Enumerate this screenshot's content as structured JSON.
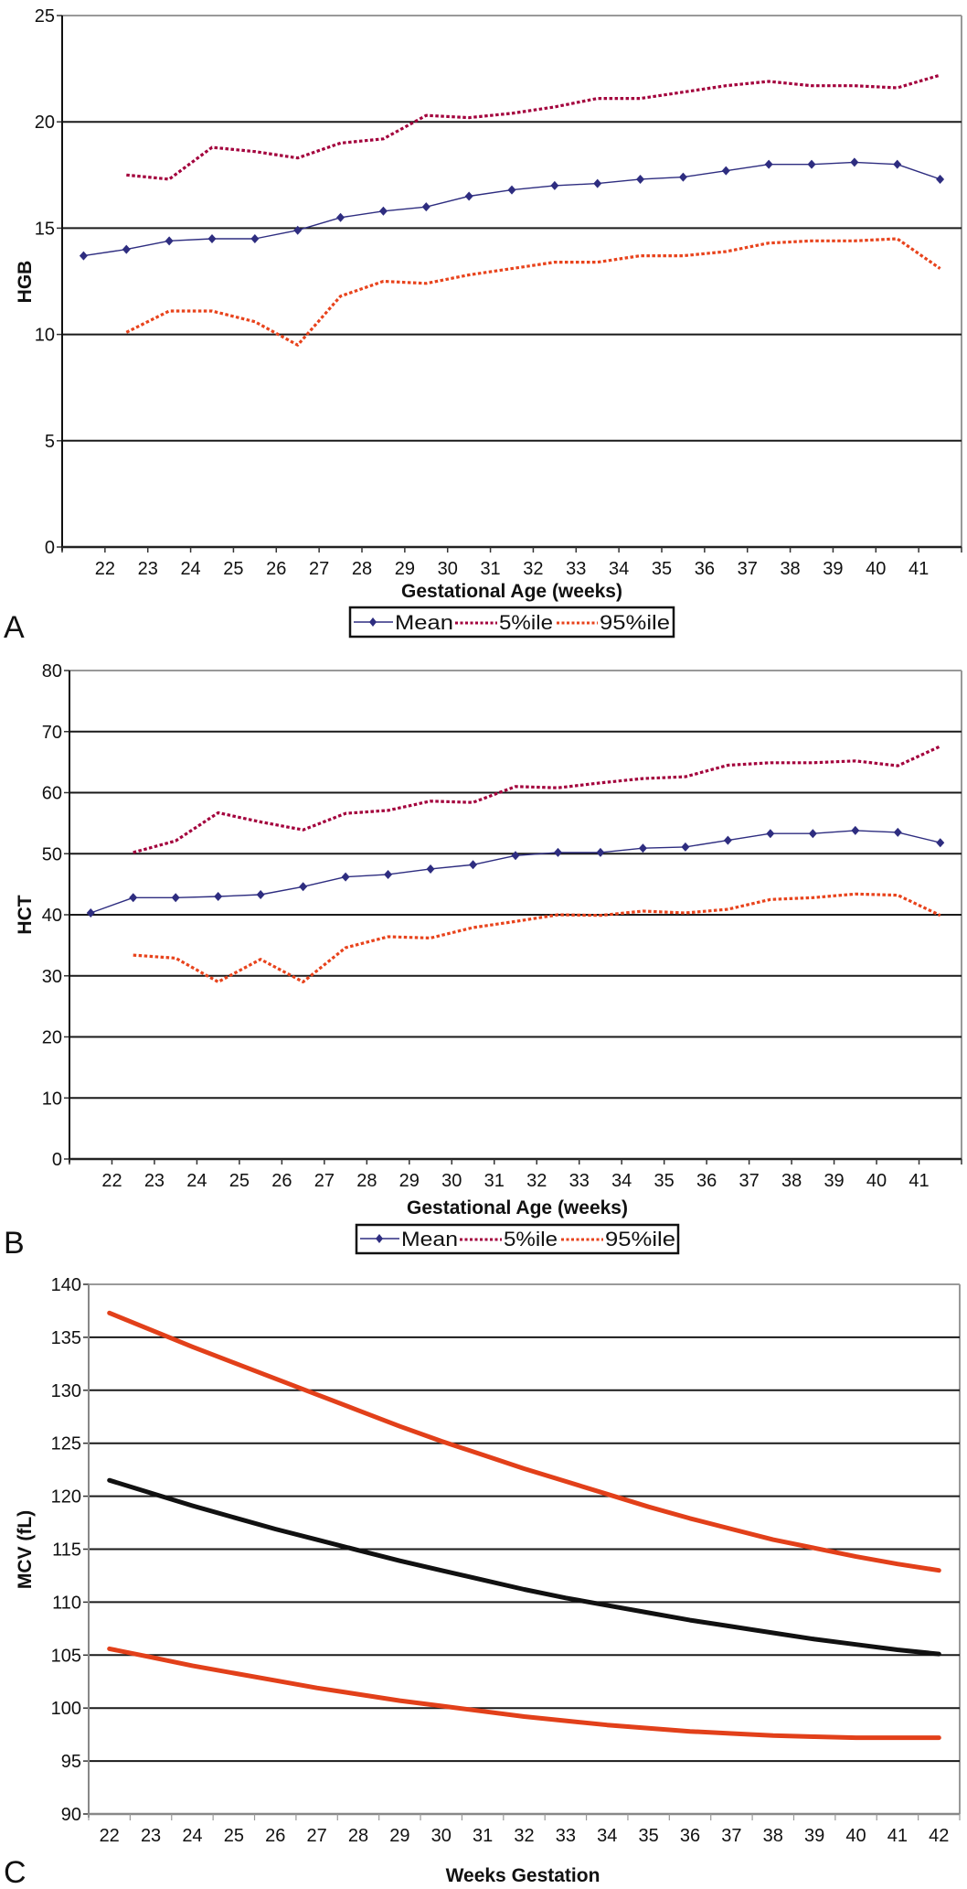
{
  "figure": {
    "panel_labels": [
      "A",
      "B",
      "C"
    ]
  },
  "chart_data": [
    {
      "type": "line",
      "xlabel": "Gestational Age (weeks)",
      "ylabel": "HGB",
      "xlim": [
        21,
        42
      ],
      "ylim": [
        0,
        25
      ],
      "y_ticks": [
        0,
        5,
        10,
        15,
        20,
        25
      ],
      "x_tick_labels": [
        "22",
        "23",
        "24",
        "25",
        "26",
        "27",
        "28",
        "29",
        "30",
        "31",
        "32",
        "33",
        "34",
        "35",
        "36",
        "37",
        "38",
        "39",
        "40",
        "41"
      ],
      "grid": "horizontal",
      "legend": "bottom",
      "series": [
        {
          "name": "Mean",
          "style": "solid-diamond",
          "color": "#2e2d80",
          "x": [
            21.5,
            22.5,
            23.5,
            24.5,
            25.5,
            26.5,
            27.5,
            28.5,
            29.5,
            30.5,
            31.5,
            32.5,
            33.5,
            34.5,
            35.5,
            36.5,
            37.5,
            38.5,
            39.5,
            40.5,
            41.5
          ],
          "y": [
            13.7,
            14.0,
            14.4,
            14.5,
            14.5,
            14.9,
            15.5,
            15.8,
            16.0,
            16.5,
            16.8,
            17.0,
            17.1,
            17.3,
            17.4,
            17.7,
            18.0,
            18.0,
            18.1,
            18.0,
            17.3
          ]
        },
        {
          "name": "5%ile",
          "style": "dotted",
          "color": "#a3003c",
          "x": [
            22.5,
            23.5,
            24.5,
            25.5,
            26.5,
            27.5,
            28.5,
            29.5,
            30.5,
            31.5,
            32.5,
            33.5,
            34.5,
            35.5,
            36.5,
            37.5,
            38.5,
            39.5,
            40.5,
            41.5
          ],
          "y": [
            17.5,
            17.3,
            18.8,
            18.6,
            18.3,
            19.0,
            19.2,
            20.3,
            20.2,
            20.4,
            20.7,
            21.1,
            21.1,
            21.4,
            21.7,
            21.9,
            21.7,
            21.7,
            21.6,
            22.2
          ]
        },
        {
          "name": "95%ile",
          "style": "dotted",
          "color": "#e8431c",
          "x": [
            22.5,
            23.5,
            24.5,
            25.5,
            26.5,
            27.5,
            28.5,
            29.5,
            30.5,
            31.5,
            32.5,
            33.5,
            34.5,
            35.5,
            36.5,
            37.5,
            38.5,
            39.5,
            40.5,
            41.5
          ],
          "y": [
            10.1,
            11.1,
            11.1,
            10.6,
            9.5,
            11.8,
            12.5,
            12.4,
            12.8,
            13.1,
            13.4,
            13.4,
            13.7,
            13.7,
            13.9,
            14.3,
            14.4,
            14.4,
            14.5,
            13.1
          ]
        }
      ]
    },
    {
      "type": "line",
      "xlabel": "Gestational Age (weeks)",
      "ylabel": "HCT",
      "xlim": [
        21,
        42
      ],
      "ylim": [
        0,
        80
      ],
      "y_ticks": [
        0,
        10,
        20,
        30,
        40,
        50,
        60,
        70,
        80
      ],
      "x_tick_labels": [
        "22",
        "23",
        "24",
        "25",
        "26",
        "27",
        "28",
        "29",
        "30",
        "31",
        "32",
        "33",
        "34",
        "35",
        "36",
        "37",
        "38",
        "39",
        "40",
        "41"
      ],
      "grid": "horizontal",
      "legend": "bottom",
      "series": [
        {
          "name": "Mean",
          "style": "solid-diamond",
          "color": "#2e2d80",
          "x": [
            21.5,
            22.5,
            23.5,
            24.5,
            25.5,
            26.5,
            27.5,
            28.5,
            29.5,
            30.5,
            31.5,
            32.5,
            33.5,
            34.5,
            35.5,
            36.5,
            37.5,
            38.5,
            39.5,
            40.5,
            41.5
          ],
          "y": [
            40.3,
            42.8,
            42.8,
            43.0,
            43.3,
            44.6,
            46.2,
            46.6,
            47.5,
            48.2,
            49.7,
            50.2,
            50.2,
            50.9,
            51.1,
            52.2,
            53.3,
            53.3,
            53.8,
            53.5,
            51.8
          ]
        },
        {
          "name": "5%ile",
          "style": "dotted",
          "color": "#a3003c",
          "x": [
            22.5,
            23.5,
            24.5,
            25.5,
            26.5,
            27.5,
            28.5,
            29.5,
            30.5,
            31.5,
            32.5,
            33.5,
            34.5,
            35.5,
            36.5,
            37.5,
            38.5,
            39.5,
            40.5,
            41.5
          ],
          "y": [
            50.2,
            52.1,
            56.7,
            55.2,
            53.9,
            56.6,
            57.1,
            58.6,
            58.4,
            61.0,
            60.8,
            61.6,
            62.3,
            62.6,
            64.5,
            64.9,
            64.9,
            65.2,
            64.4,
            67.6
          ]
        },
        {
          "name": "95%ile",
          "style": "dotted",
          "color": "#e8431c",
          "x": [
            22.5,
            23.5,
            24.5,
            25.5,
            26.5,
            27.5,
            28.5,
            29.5,
            30.5,
            31.5,
            32.5,
            33.5,
            34.5,
            35.5,
            36.5,
            37.5,
            38.5,
            39.5,
            40.5,
            41.5
          ],
          "y": [
            33.4,
            32.9,
            29.0,
            32.7,
            29.0,
            34.6,
            36.4,
            36.2,
            37.9,
            38.9,
            40.0,
            39.9,
            40.6,
            40.3,
            40.9,
            42.5,
            42.8,
            43.4,
            43.2,
            39.9
          ]
        }
      ]
    },
    {
      "type": "line",
      "xlabel": "Weeks Gestation",
      "ylabel": "MCV (fL)",
      "xlim": [
        21.5,
        42.5
      ],
      "ylim": [
        90,
        140
      ],
      "y_ticks": [
        90,
        95,
        100,
        105,
        110,
        115,
        120,
        125,
        130,
        135,
        140
      ],
      "x_tick_labels": [
        "22",
        "23",
        "24",
        "25",
        "26",
        "27",
        "28",
        "29",
        "30",
        "31",
        "32",
        "33",
        "34",
        "35",
        "36",
        "37",
        "38",
        "39",
        "40",
        "41",
        "42"
      ],
      "grid": "horizontal",
      "series": [
        {
          "style": "solid-thick",
          "color": "#e2401a",
          "x": [
            22,
            23,
            24,
            25,
            26,
            27,
            28,
            29,
            30,
            31,
            32,
            33,
            34,
            35,
            36,
            37,
            38,
            39,
            40,
            41,
            42
          ],
          "y": [
            137.3,
            135.7,
            134.1,
            132.6,
            131.1,
            129.6,
            128.1,
            126.6,
            125.2,
            123.9,
            122.6,
            121.4,
            120.2,
            119.0,
            117.9,
            116.9,
            115.9,
            115.1,
            114.3,
            113.6,
            113.0
          ]
        },
        {
          "style": "solid-thick",
          "color": "#111111",
          "x": [
            22,
            23,
            24,
            25,
            26,
            27,
            28,
            29,
            30,
            31,
            32,
            33,
            34,
            35,
            36,
            37,
            38,
            39,
            40,
            41,
            42
          ],
          "y": [
            121.5,
            120.3,
            119.1,
            118.0,
            116.9,
            115.9,
            114.9,
            113.9,
            113.0,
            112.1,
            111.2,
            110.4,
            109.7,
            109.0,
            108.3,
            107.7,
            107.1,
            106.5,
            106.0,
            105.5,
            105.1
          ]
        },
        {
          "style": "solid-thick",
          "color": "#e2401a",
          "x": [
            22,
            23,
            24,
            25,
            26,
            27,
            28,
            29,
            30,
            31,
            32,
            33,
            34,
            35,
            36,
            37,
            38,
            39,
            40,
            41,
            42
          ],
          "y": [
            105.6,
            104.8,
            104.0,
            103.3,
            102.6,
            101.9,
            101.3,
            100.7,
            100.2,
            99.7,
            99.2,
            98.8,
            98.4,
            98.1,
            97.8,
            97.6,
            97.4,
            97.3,
            97.2,
            97.2,
            97.2
          ]
        }
      ]
    }
  ]
}
